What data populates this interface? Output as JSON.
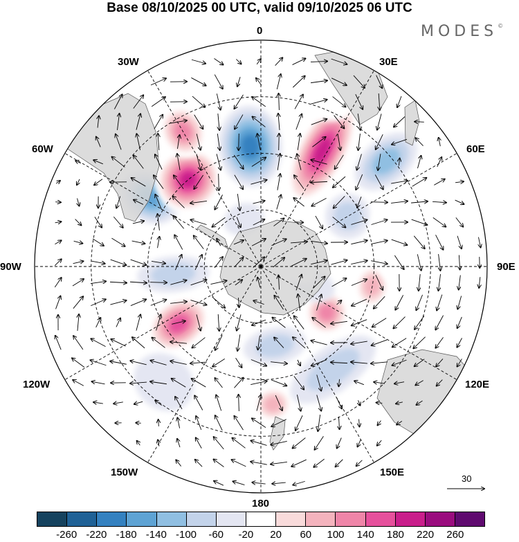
{
  "title": "Base 08/10/2025 00 UTC, valid 09/10/2025 06 UTC",
  "brand": "MODES",
  "brand_mark": "©",
  "longitude_labels": {
    "top": "0",
    "top_right": "30E",
    "upper_right": "60E",
    "right": "90E",
    "lower_right": "120E",
    "bottom_right": "150E",
    "bottom": "180",
    "bottom_left": "150W",
    "lower_left": "120W",
    "left": "90W",
    "upper_left": "60W",
    "top_left": "30W"
  },
  "reference_vector": "30",
  "colorbar": {
    "colors": [
      "#15425e",
      "#1f6196",
      "#3481c0",
      "#5ea3d4",
      "#90bfe2",
      "#c3d3ea",
      "#e4e6f2",
      "#ffffff",
      "#f9dbdb",
      "#f4b3bd",
      "#ef85a8",
      "#e6509c",
      "#c91e8b",
      "#9a0c7e",
      "#5f0a6f"
    ],
    "ticks": [
      "-260",
      "-220",
      "-180",
      "-140",
      "-100",
      "-60",
      "-20",
      "20",
      "60",
      "100",
      "140",
      "180",
      "220",
      "260"
    ]
  },
  "anomaly_centers": [
    {
      "value": -230,
      "lon": -5,
      "lat": -42,
      "rx": 0.14,
      "ry": 0.18
    },
    {
      "value": -180,
      "lon": -58,
      "lat": -38,
      "rx": 0.11,
      "ry": 0.14
    },
    {
      "value": 240,
      "lon": -40,
      "lat": -45,
      "rx": 0.15,
      "ry": 0.14
    },
    {
      "value": 160,
      "lon": -30,
      "lat": -28,
      "rx": 0.1,
      "ry": 0.12
    },
    {
      "value": 250,
      "lon": 28,
      "lat": -38,
      "rx": 0.11,
      "ry": 0.26
    },
    {
      "value": -120,
      "lon": 50,
      "lat": -25,
      "rx": 0.1,
      "ry": 0.16
    },
    {
      "value": -100,
      "lon": 60,
      "lat": -50,
      "rx": 0.1,
      "ry": 0.1
    },
    {
      "value": -110,
      "lon": -95,
      "lat": -55,
      "rx": 0.08,
      "ry": 0.16
    },
    {
      "value": 140,
      "lon": 100,
      "lat": -45,
      "rx": 0.1,
      "ry": 0.08
    },
    {
      "value": 60,
      "lon": 80,
      "lat": -35,
      "rx": 0.2,
      "ry": 0.12
    },
    {
      "value": 180,
      "lon": 125,
      "lat": -58,
      "rx": 0.1,
      "ry": 0.1
    },
    {
      "value": 210,
      "lon": -125,
      "lat": -50,
      "rx": 0.11,
      "ry": 0.15
    },
    {
      "value": -90,
      "lon": 170,
      "lat": -58,
      "rx": 0.14,
      "ry": 0.08
    },
    {
      "value": 150,
      "lon": 175,
      "lat": -35,
      "rx": 0.09,
      "ry": 0.08
    },
    {
      "value": -80,
      "lon": 145,
      "lat": -40,
      "rx": 0.22,
      "ry": 0.1
    },
    {
      "value": -60,
      "lon": -140,
      "lat": -30,
      "rx": 0.14,
      "ry": 0.12
    },
    {
      "value": 60,
      "lon": -110,
      "lat": -20,
      "rx": 0.14,
      "ry": 0.18
    },
    {
      "value": -60,
      "lon": 110,
      "lat": -68,
      "rx": 0.07,
      "ry": 0.1
    },
    {
      "value": 50,
      "lon": 95,
      "lat": -73,
      "rx": 0.06,
      "ry": 0.06
    },
    {
      "value": 40,
      "lon": 20,
      "lat": -20,
      "rx": 0.14,
      "ry": 0.08
    },
    {
      "value": -40,
      "lon": -20,
      "lat": -70,
      "rx": 0.09,
      "ry": 0.07
    }
  ],
  "land_color": "#d6d6d6"
}
